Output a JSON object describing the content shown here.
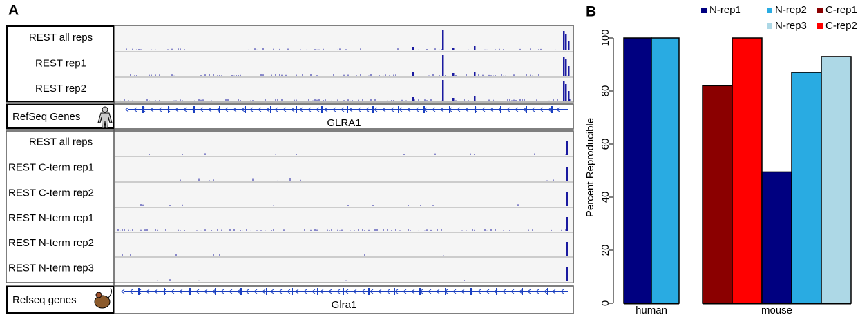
{
  "panel_labels": [
    "A",
    "B"
  ],
  "panel_a": {
    "human_tracks": [
      "REST all reps",
      "REST rep1",
      "REST rep2"
    ],
    "human_gene_track": "RefSeq Genes",
    "human_gene": "GLRA1",
    "mouse_tracks": [
      "REST all reps",
      "REST C-term rep1",
      "REST C-term rep2",
      "REST N-term rep1",
      "REST N-term rep2",
      "REST N-term rep3"
    ],
    "mouse_gene_track": "Refseq genes",
    "mouse_gene": "Glra1"
  },
  "chart_data": {
    "type": "bar",
    "ylabel": "Percent Reproducible",
    "categories": [
      "human",
      "mouse"
    ],
    "series": [
      {
        "name": "C-rep1",
        "color": "#8b0000",
        "values": [
          null,
          82
        ]
      },
      {
        "name": "C-rep2",
        "color": "#ff0000",
        "values": [
          null,
          100
        ]
      },
      {
        "name": "N-rep1",
        "color": "#000080",
        "values": [
          100,
          49.5
        ]
      },
      {
        "name": "N-rep2",
        "color": "#29abe2",
        "values": [
          100,
          87
        ]
      },
      {
        "name": "N-rep3",
        "color": "#add8e6",
        "values": [
          null,
          93
        ]
      }
    ],
    "ylim": [
      0,
      100
    ],
    "yticks": [
      0,
      20,
      40,
      60,
      80,
      100
    ]
  }
}
